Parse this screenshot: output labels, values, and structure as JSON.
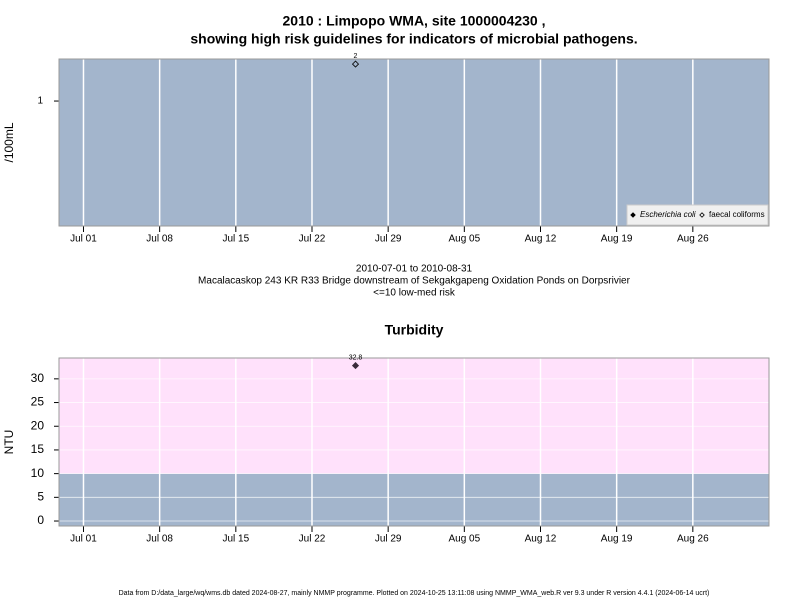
{
  "chart_data": [
    {
      "type": "scatter",
      "title": [
        "2010 : Limpopo WMA, site 1000004230 ,",
        "showing high risk guidelines for indicators of microbial pathogens."
      ],
      "caption": [
        "2010-07-01 to 2010-08-31",
        "Macalacaskop 243 KR R33 Bridge downstream of Sekgakgapeng Oxidation Ponds on Dorpsrivier",
        "<=10 low-med risk"
      ],
      "y_label": "/100mL",
      "x": [
        "2010-07-26"
      ],
      "series": [
        {
          "name": "Escherichia coli",
          "color": "#000000",
          "marker": "filled",
          "values": [
            null
          ]
        },
        {
          "name": "faecal coliforms",
          "color": "#000000",
          "marker": "open",
          "values": [
            2
          ]
        }
      ],
      "xlim": [
        "2010-06-28T18:00",
        "2010-09-02T00:00"
      ],
      "xticks": [
        {
          "value": "2010-07-01",
          "label": "Jul 01"
        },
        {
          "value": "2010-07-08",
          "label": "Jul 08"
        },
        {
          "value": "2010-07-15",
          "label": "Jul 15"
        },
        {
          "value": "2010-07-22",
          "label": "Jul 22"
        },
        {
          "value": "2010-07-29",
          "label": "Jul 29"
        },
        {
          "value": "2010-08-05",
          "label": "Aug 05"
        },
        {
          "value": "2010-08-12",
          "label": "Aug 12"
        },
        {
          "value": "2010-08-19",
          "label": "Aug 19"
        },
        {
          "value": "2010-08-26",
          "label": "Aug 26"
        }
      ],
      "ylim": [
        0.096,
        2.2
      ],
      "yticks": [
        1
      ],
      "log_scale": true,
      "background": "#a3b5cc",
      "grid": "x",
      "legend": "bottom-right"
    },
    {
      "type": "scatter",
      "title": "Turbidity",
      "y_label": "NTU",
      "x": [
        "2010-07-26"
      ],
      "values": [
        32.8
      ],
      "color": "#3a2a3a",
      "marker": "filled",
      "xlim": [
        "2010-06-28T18:00",
        "2010-09-02T00:00"
      ],
      "xticks": [
        {
          "value": "2010-07-01",
          "label": "Jul 01"
        },
        {
          "value": "2010-07-08",
          "label": "Jul 08"
        },
        {
          "value": "2010-07-15",
          "label": "Jul 15"
        },
        {
          "value": "2010-07-22",
          "label": "Jul 22"
        },
        {
          "value": "2010-07-29",
          "label": "Jul 29"
        },
        {
          "value": "2010-08-05",
          "label": "Aug 05"
        },
        {
          "value": "2010-08-12",
          "label": "Aug 12"
        },
        {
          "value": "2010-08-19",
          "label": "Aug 19"
        },
        {
          "value": "2010-08-26",
          "label": "Aug 26"
        }
      ],
      "ylim": [
        -1.05,
        34.4
      ],
      "yticks": [
        0,
        5,
        10,
        15,
        20,
        25,
        30
      ],
      "log_scale": false,
      "background": "#a3b5cc",
      "threshold": 10,
      "above_color": "#ffe1fb",
      "grid": "both"
    }
  ],
  "footer": "Data from D:/data_large/wq/wms.db dated 2024-08-27, mainly NMMP programme. Plotted on 2024-10-25 13:11:08 using NMMP_WMA_web.R ver 9.3 under R version 4.4.1 (2024-06-14 ucrt)"
}
